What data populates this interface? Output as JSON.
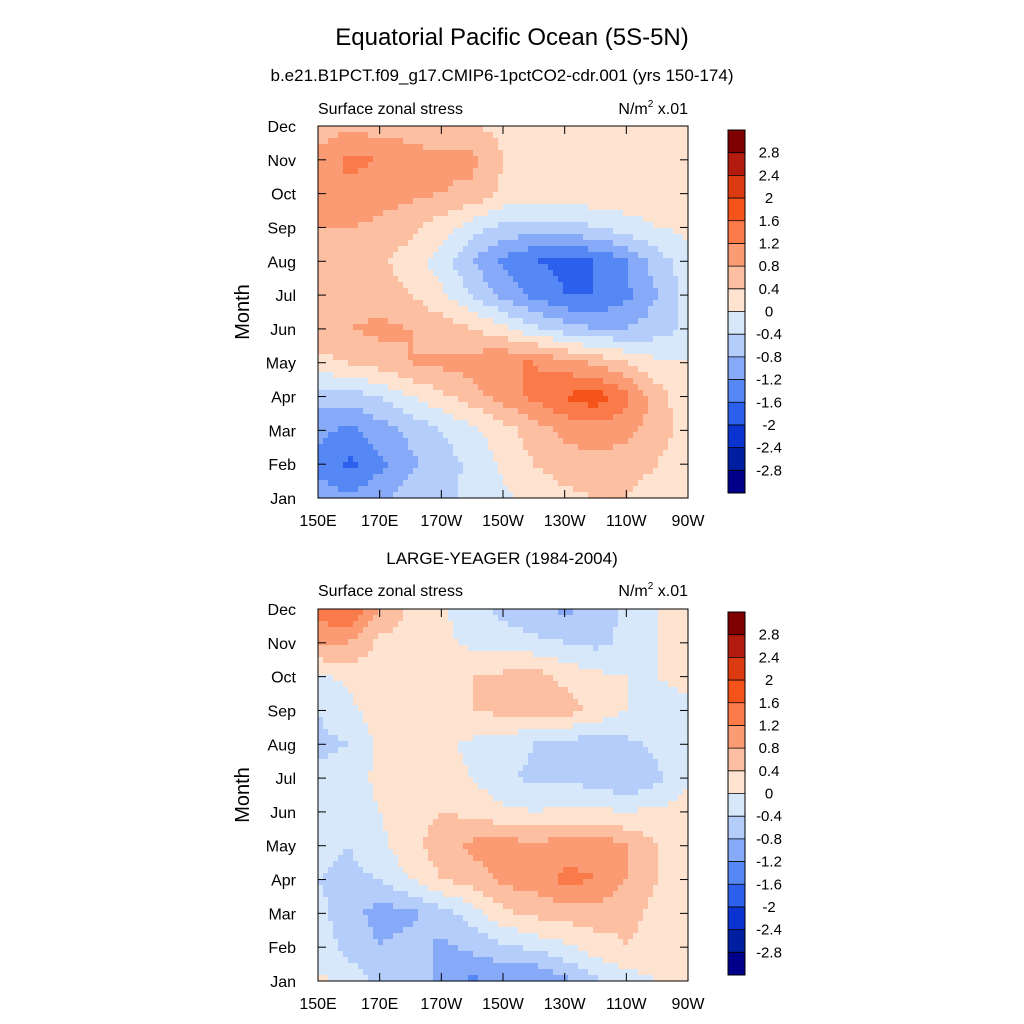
{
  "title": "Equatorial Pacific Ocean (5S-5N)",
  "colorbar": {
    "labels": [
      "2.8",
      "2.4",
      "2",
      "1.6",
      "1.2",
      "0.8",
      "0.4",
      "0",
      "-0.4",
      "-0.8",
      "-1.2",
      "-1.6",
      "-2",
      "-2.4",
      "-2.8"
    ],
    "colors": [
      "#7f0000",
      "#b21b0e",
      "#dc3a10",
      "#f4541a",
      "#fb7a49",
      "#fb9b74",
      "#fcbfa2",
      "#fde3d0",
      "#d7e8fb",
      "#b4cdfa",
      "#86aaf8",
      "#5588f5",
      "#2c60ec",
      "#0b33d0",
      "#001ea0",
      "#00008a"
    ]
  },
  "panels": [
    {
      "title": "b.e21.B1PCT.f09_g17.CMIP6-1pctCO2-cdr.001 (yrs 150-174)",
      "left_label": "Surface zonal stress",
      "right_label": "N/m",
      "right_label_sup": "2",
      "right_label_tail": " x.01"
    },
    {
      "title": "LARGE-YEAGER (1984-2004)",
      "left_label": "Surface zonal stress",
      "right_label": "N/m",
      "right_label_sup": "2",
      "right_label_tail": " x.01"
    }
  ],
  "chart_data": [
    {
      "type": "heatmap",
      "title": "b.e21.B1PCT.f09_g17.CMIP6-1pctCO2-cdr.001 (yrs 150-174)",
      "xlabel": "",
      "ylabel": "Month",
      "x_ticks": [
        "150E",
        "170E",
        "170W",
        "150W",
        "130W",
        "110W",
        "90W"
      ],
      "y_ticks": [
        "Jan",
        "Feb",
        "Mar",
        "Apr",
        "May",
        "Jun",
        "Jul",
        "Aug",
        "Sep",
        "Oct",
        "Nov",
        "Dec"
      ],
      "x": [
        150,
        160,
        170,
        180,
        190,
        200,
        210,
        220,
        230,
        240,
        250,
        260,
        270
      ],
      "y": [
        "Jan",
        "Feb",
        "Mar",
        "Apr",
        "May",
        "Jun",
        "Jul",
        "Aug",
        "Sep",
        "Oct",
        "Nov",
        "Dec"
      ],
      "z": [
        [
          -1.0,
          -1.1,
          -0.9,
          -0.6,
          -0.5,
          -0.3,
          -0.1,
          0.1,
          0.3,
          0.4,
          0.4,
          0.2,
          0.1
        ],
        [
          -1.3,
          -1.7,
          -1.3,
          -0.9,
          -0.6,
          -0.3,
          0.1,
          0.4,
          0.6,
          0.7,
          0.6,
          0.4,
          0.1
        ],
        [
          -1.1,
          -1.3,
          -1.0,
          -0.7,
          -0.4,
          -0.1,
          0.2,
          0.6,
          0.9,
          1.0,
          0.9,
          0.6,
          0.2
        ],
        [
          -0.6,
          -0.6,
          -0.4,
          0.0,
          0.3,
          0.6,
          1.0,
          1.3,
          1.6,
          1.9,
          1.3,
          0.6,
          0.1
        ],
        [
          0.3,
          0.4,
          0.6,
          0.8,
          0.9,
          1.0,
          1.2,
          1.2,
          1.0,
          0.7,
          0.4,
          0.1,
          0.0
        ],
        [
          0.6,
          0.8,
          0.9,
          0.8,
          0.6,
          0.4,
          0.1,
          -0.3,
          -0.6,
          -0.8,
          -0.8,
          -0.6,
          -0.3
        ],
        [
          0.5,
          0.6,
          0.6,
          0.4,
          0.1,
          -0.4,
          -0.9,
          -1.3,
          -1.6,
          -1.6,
          -1.3,
          -0.8,
          -0.2
        ],
        [
          0.6,
          0.6,
          0.5,
          0.2,
          -0.2,
          -0.8,
          -1.3,
          -1.6,
          -1.7,
          -1.6,
          -1.2,
          -0.6,
          -0.2
        ],
        [
          0.8,
          0.8,
          0.7,
          0.5,
          0.2,
          -0.2,
          -0.5,
          -0.6,
          -0.6,
          -0.4,
          -0.2,
          0.0,
          0.1
        ],
        [
          1.0,
          1.1,
          1.0,
          0.9,
          0.8,
          0.7,
          0.3,
          0.3,
          0.3,
          0.3,
          0.3,
          0.3,
          0.2
        ],
        [
          0.9,
          1.3,
          1.2,
          1.0,
          0.9,
          0.9,
          0.4,
          0.3,
          0.3,
          0.2,
          0.2,
          0.1,
          0.1
        ],
        [
          0.6,
          0.7,
          0.6,
          0.6,
          0.5,
          0.4,
          0.3,
          0.2,
          0.2,
          0.1,
          0.1,
          0.1,
          0.1
        ]
      ],
      "levels": [
        -2.8,
        -2.4,
        -2,
        -1.6,
        -1.2,
        -0.8,
        -0.4,
        0,
        0.4,
        0.8,
        1.2,
        1.6,
        2,
        2.4,
        2.8
      ],
      "units": "N/m2 x.01"
    },
    {
      "type": "heatmap",
      "title": "LARGE-YEAGER (1984-2004)",
      "xlabel": "",
      "ylabel": "Month",
      "x_ticks": [
        "150E",
        "170E",
        "170W",
        "150W",
        "130W",
        "110W",
        "90W"
      ],
      "y_ticks": [
        "Jan",
        "Feb",
        "Mar",
        "Apr",
        "May",
        "Jun",
        "Jul",
        "Aug",
        "Sep",
        "Oct",
        "Nov",
        "Dec"
      ],
      "x": [
        150,
        160,
        170,
        180,
        190,
        200,
        210,
        220,
        230,
        240,
        250,
        260,
        270
      ],
      "y": [
        "Jan",
        "Feb",
        "Mar",
        "Apr",
        "May",
        "Jun",
        "Jul",
        "Aug",
        "Sep",
        "Oct",
        "Nov",
        "Dec"
      ],
      "z": [
        [
          0.1,
          -0.2,
          -0.5,
          -0.6,
          -0.9,
          -1.3,
          -1.1,
          -1.3,
          -0.9,
          -0.5,
          -0.2,
          0.0,
          0.1
        ],
        [
          -0.2,
          -0.5,
          -0.8,
          -0.6,
          -0.9,
          -0.7,
          -0.5,
          -0.3,
          -0.1,
          0.2,
          0.4,
          0.3,
          0.1
        ],
        [
          -0.3,
          -0.6,
          -1.0,
          -0.9,
          -0.6,
          -0.2,
          0.3,
          0.5,
          0.6,
          0.6,
          0.5,
          0.3,
          0.1
        ],
        [
          -0.4,
          -0.5,
          -0.4,
          0.0,
          0.4,
          0.6,
          0.9,
          1.0,
          1.3,
          1.2,
          0.8,
          0.4,
          0.1
        ],
        [
          -0.3,
          -0.4,
          -0.1,
          0.3,
          0.6,
          0.9,
          1.0,
          0.9,
          1.0,
          1.1,
          0.8,
          0.4,
          0.1
        ],
        [
          -0.2,
          -0.3,
          0.0,
          0.2,
          0.4,
          0.3,
          0.1,
          0.0,
          0.1,
          0.1,
          0.0,
          0.1,
          0.1
        ],
        [
          -0.3,
          -0.2,
          0.1,
          0.2,
          0.2,
          0.0,
          -0.3,
          -0.5,
          -0.5,
          -0.6,
          -0.8,
          -0.5,
          0.0
        ],
        [
          -0.5,
          -0.4,
          0.1,
          0.2,
          0.1,
          -0.1,
          -0.2,
          -0.4,
          -0.6,
          -0.6,
          -0.5,
          -0.3,
          -0.1
        ],
        [
          -0.4,
          -0.1,
          0.2,
          0.3,
          0.3,
          0.4,
          0.5,
          0.5,
          0.6,
          0.3,
          0.0,
          -0.1,
          -0.1
        ],
        [
          -0.1,
          0.1,
          0.3,
          0.3,
          0.3,
          0.4,
          0.5,
          0.6,
          0.3,
          0.1,
          0.0,
          0.0,
          0.1
        ],
        [
          0.9,
          0.8,
          0.3,
          0.2,
          0.1,
          -0.1,
          -0.2,
          -0.3,
          -0.4,
          -0.5,
          -0.3,
          0.0,
          0.1
        ],
        [
          1.4,
          1.6,
          0.8,
          0.3,
          0.1,
          -0.3,
          -0.5,
          -0.7,
          -0.9,
          -0.7,
          -0.3,
          0.0,
          0.1
        ]
      ],
      "levels": [
        -2.8,
        -2.4,
        -2,
        -1.6,
        -1.2,
        -0.8,
        -0.4,
        0,
        0.4,
        0.8,
        1.2,
        1.6,
        2,
        2.4,
        2.8
      ],
      "units": "N/m2 x.01"
    }
  ]
}
